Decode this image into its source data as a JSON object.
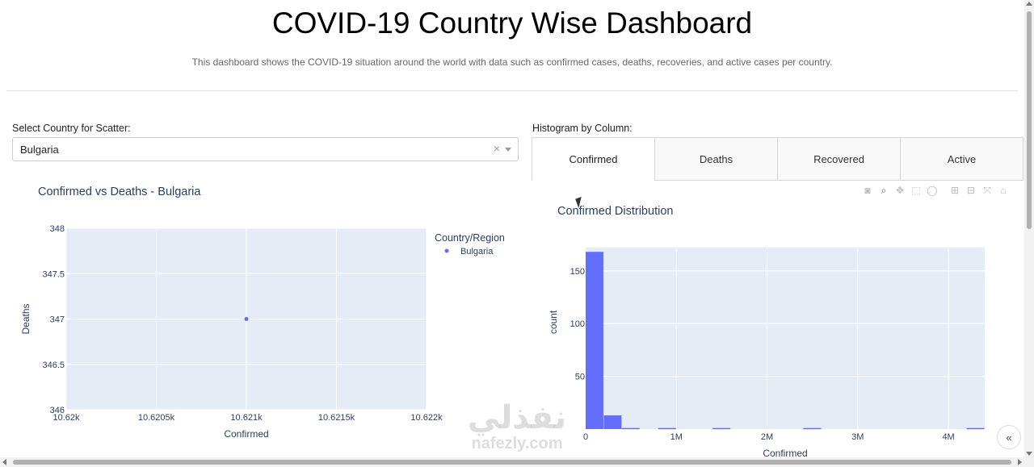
{
  "header": {
    "title": "COVID-19 Country Wise Dashboard",
    "subtitle": "This dashboard shows the COVID-19 situation around the world with data such as confirmed cases, deaths, recoveries, and active cases per country."
  },
  "scatter_panel": {
    "select_label": "Select Country for Scatter:",
    "selected_country": "Bulgaria",
    "clear_icon": "×"
  },
  "histogram_panel": {
    "label": "Histogram by Column:",
    "tabs": [
      {
        "label": "Confirmed",
        "active": true
      },
      {
        "label": "Deaths",
        "active": false
      },
      {
        "label": "Recovered",
        "active": false
      },
      {
        "label": "Active",
        "active": false
      }
    ]
  },
  "modebar": {
    "icons": [
      "camera-icon",
      "zoom-icon",
      "pan-icon",
      "box-select-icon",
      "lasso-icon",
      "zoom-in-icon",
      "zoom-out-icon",
      "autoscale-icon",
      "home-icon"
    ]
  },
  "colors": {
    "plot_bg": "#e5ecf6",
    "marker": "#636efa",
    "tab_border": "#d6d6d6",
    "accent_line": "#1f77d0"
  },
  "watermark": {
    "arabic": "نفذلي",
    "latin": "nafezly.com"
  },
  "chart_data": [
    {
      "type": "scatter",
      "title": "Confirmed vs Deaths - Bulgaria",
      "xlabel": "Confirmed",
      "ylabel": "Deaths",
      "xlim": [
        10620,
        10622
      ],
      "ylim": [
        346,
        348
      ],
      "xticks": [
        10620,
        10620.5,
        10621,
        10621.5,
        10622
      ],
      "xtick_labels": [
        "10.62k",
        "10.6205k",
        "10.621k",
        "10.6215k",
        "10.622k"
      ],
      "yticks": [
        346,
        346.5,
        347,
        347.5,
        348
      ],
      "ytick_labels": [
        "346",
        "346.5",
        "347",
        "347.5",
        "348"
      ],
      "legend_title": "Country/Region",
      "series": [
        {
          "name": "Bulgaria",
          "color": "#636efa",
          "points": [
            [
              10621,
              347
            ]
          ]
        }
      ],
      "grid": true
    },
    {
      "type": "bar",
      "title": "Confirmed Distribution",
      "xlabel": "Confirmed",
      "ylabel": "count",
      "xlim": [
        0,
        4400000
      ],
      "ylim": [
        0,
        172
      ],
      "xticks": [
        0,
        1000000,
        2000000,
        3000000,
        4000000
      ],
      "xtick_labels": [
        "0",
        "1M",
        "2M",
        "3M",
        "4M"
      ],
      "yticks": [
        50,
        100,
        150
      ],
      "ytick_labels": [
        "50",
        "100",
        "150"
      ],
      "bin_width": 200000,
      "bins": [
        {
          "start": 0,
          "count": 168
        },
        {
          "start": 200000,
          "count": 13
        },
        {
          "start": 400000,
          "count": 1
        },
        {
          "start": 800000,
          "count": 1
        },
        {
          "start": 1400000,
          "count": 1
        },
        {
          "start": 2400000,
          "count": 1
        },
        {
          "start": 4200000,
          "count": 1
        }
      ],
      "color": "#636efa",
      "grid": true
    }
  ]
}
